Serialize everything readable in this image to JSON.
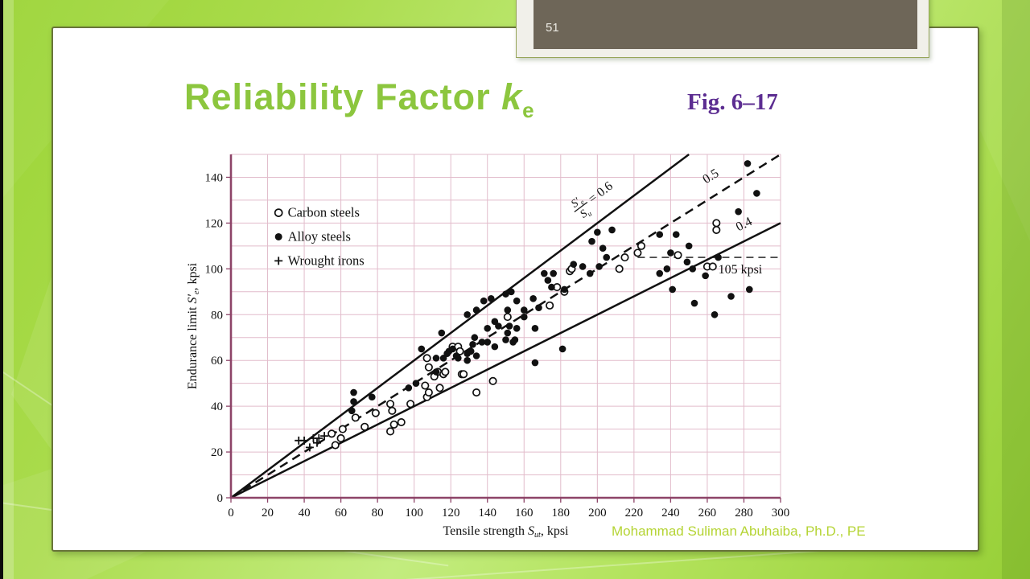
{
  "page": {
    "slide_number": "51"
  },
  "header": {
    "title_text": "Reliability Factor ",
    "title_k": "k",
    "title_sub": "e",
    "fig_label": "Fig. 6–17"
  },
  "footer": {
    "credit": "Mohammad Suliman Abuhaiba, Ph.D., PE"
  },
  "colors": {
    "title_green": "#8cc63e",
    "fig_purple": "#5c2d91",
    "credit_green": "#b5d434",
    "grid_pink": "#e2bccb",
    "axis_purple": "#8d4468",
    "point_black": "#111111",
    "tab_dark": "#6e6658",
    "tab_frame": "#f1f0ea"
  },
  "chart_data": {
    "type": "scatter",
    "title": "",
    "xlabel_parts": {
      "pre": "Tensile strength ",
      "main": "S",
      "sub": "ut",
      "post": ", kpsi"
    },
    "ylabel_parts": {
      "pre": "Endurance limit ",
      "main": "S",
      "prime": "′",
      "sub": "e",
      "post": ", kpsi"
    },
    "xlim": [
      0,
      300
    ],
    "ylim": [
      0,
      150
    ],
    "xticks": [
      0,
      20,
      40,
      60,
      80,
      100,
      120,
      140,
      160,
      180,
      200,
      220,
      240,
      260,
      280,
      300
    ],
    "yticks": [
      0,
      20,
      40,
      60,
      80,
      100,
      120,
      140
    ],
    "grid": {
      "on": true,
      "x_step": 20,
      "y_step": 10
    },
    "legend": {
      "position": "upper-left-inside",
      "marker_x": 26,
      "label_x": 31,
      "rows": [
        {
          "marker": "open-circle",
          "label": "Carbon steels",
          "y": 124.5
        },
        {
          "marker": "filled-circle",
          "label": "Alloy steels",
          "y": 114.0
        },
        {
          "marker": "plus",
          "label": "Wrought irons",
          "y": 103.5
        }
      ]
    },
    "ratio_lines": [
      {
        "ratio": 0.6,
        "dash": false,
        "label": "= 0.6",
        "fraction": true,
        "label_at": [
          191,
          127
        ],
        "fraction_parts": {
          "num_main": "S",
          "num_prime": "′",
          "num_sub": "e",
          "den_main": "S",
          "den_sub": "u"
        }
      },
      {
        "ratio": 0.5,
        "dash": true,
        "label": "0.5",
        "fraction": false,
        "label_at": [
          263,
          139
        ]
      },
      {
        "ratio": 0.4,
        "dash": false,
        "label": "0.4",
        "fraction": false,
        "label_at": [
          281,
          118
        ]
      }
    ],
    "annotation": {
      "y": 105,
      "x_start": 222,
      "x_end": 300,
      "label": "105 kpsi",
      "label_at": [
        266,
        98
      ]
    },
    "series": [
      {
        "name": "Carbon steels",
        "marker": "open-circle",
        "points": [
          [
            55,
            28
          ],
          [
            57,
            23
          ],
          [
            60,
            26
          ],
          [
            61,
            30
          ],
          [
            68,
            35
          ],
          [
            73,
            31
          ],
          [
            79,
            37
          ],
          [
            87,
            29
          ],
          [
            87,
            41
          ],
          [
            88,
            38
          ],
          [
            89,
            32
          ],
          [
            93,
            33
          ],
          [
            98,
            41
          ],
          [
            106,
            49
          ],
          [
            107,
            44
          ],
          [
            108,
            46
          ],
          [
            107,
            61
          ],
          [
            108,
            57
          ],
          [
            111,
            53
          ],
          [
            113,
            55
          ],
          [
            114,
            48
          ],
          [
            116,
            54
          ],
          [
            117,
            55
          ],
          [
            121,
            66
          ],
          [
            124,
            66
          ],
          [
            125,
            64
          ],
          [
            126,
            54
          ],
          [
            127,
            54
          ],
          [
            134,
            46
          ],
          [
            143,
            51
          ],
          [
            151,
            79
          ],
          [
            174,
            84
          ],
          [
            178,
            92
          ],
          [
            182,
            90
          ],
          [
            185,
            99
          ],
          [
            186,
            100
          ],
          [
            212,
            100
          ],
          [
            215,
            105
          ],
          [
            222,
            107
          ],
          [
            224,
            110
          ],
          [
            244,
            106
          ],
          [
            260,
            101
          ],
          [
            263,
            101
          ],
          [
            265,
            117
          ],
          [
            265,
            120
          ]
        ]
      },
      {
        "name": "Alloy steels",
        "marker": "filled-circle",
        "points": [
          [
            66,
            38
          ],
          [
            67,
            42
          ],
          [
            67,
            46
          ],
          [
            77,
            44
          ],
          [
            97,
            48
          ],
          [
            101,
            50
          ],
          [
            104,
            65
          ],
          [
            112,
            55
          ],
          [
            112,
            61
          ],
          [
            115,
            72
          ],
          [
            116,
            61
          ],
          [
            118,
            63
          ],
          [
            119,
            64
          ],
          [
            121,
            65
          ],
          [
            123,
            62
          ],
          [
            124,
            61
          ],
          [
            129,
            60
          ],
          [
            129,
            63
          ],
          [
            129,
            80
          ],
          [
            131,
            64
          ],
          [
            132,
            67
          ],
          [
            133,
            70
          ],
          [
            134,
            62
          ],
          [
            134,
            82
          ],
          [
            137,
            68
          ],
          [
            138,
            86
          ],
          [
            140,
            68
          ],
          [
            140,
            74
          ],
          [
            142,
            87
          ],
          [
            144,
            66
          ],
          [
            144,
            77
          ],
          [
            146,
            75
          ],
          [
            150,
            69
          ],
          [
            150,
            89
          ],
          [
            151,
            72
          ],
          [
            151,
            82
          ],
          [
            152,
            75
          ],
          [
            153,
            90
          ],
          [
            154,
            68
          ],
          [
            155,
            69
          ],
          [
            156,
            74
          ],
          [
            156,
            86
          ],
          [
            160,
            79
          ],
          [
            160,
            82
          ],
          [
            165,
            87
          ],
          [
            166,
            59
          ],
          [
            166,
            74
          ],
          [
            168,
            83
          ],
          [
            171,
            98
          ],
          [
            173,
            95
          ],
          [
            175,
            92
          ],
          [
            176,
            98
          ],
          [
            181,
            65
          ],
          [
            182,
            91
          ],
          [
            187,
            102
          ],
          [
            192,
            101
          ],
          [
            196,
            98
          ],
          [
            197,
            112
          ],
          [
            200,
            116
          ],
          [
            201,
            101
          ],
          [
            203,
            109
          ],
          [
            205,
            105
          ],
          [
            208,
            117
          ],
          [
            234,
            98
          ],
          [
            234,
            115
          ],
          [
            238,
            100
          ],
          [
            240,
            107
          ],
          [
            241,
            91
          ],
          [
            243,
            115
          ],
          [
            249,
            103
          ],
          [
            250,
            110
          ],
          [
            252,
            100
          ],
          [
            253,
            85
          ],
          [
            259,
            97
          ],
          [
            264,
            80
          ],
          [
            266,
            105
          ],
          [
            273,
            88
          ],
          [
            277,
            125
          ],
          [
            282,
            146
          ],
          [
            283,
            91
          ],
          [
            287,
            133
          ]
        ]
      },
      {
        "name": "Wrought irons",
        "marker": "plus",
        "points": [
          [
            37,
            25
          ],
          [
            40,
            25
          ],
          [
            43,
            22
          ],
          [
            45,
            26
          ],
          [
            47,
            24
          ],
          [
            48,
            26
          ],
          [
            51,
            27
          ]
        ]
      }
    ]
  }
}
